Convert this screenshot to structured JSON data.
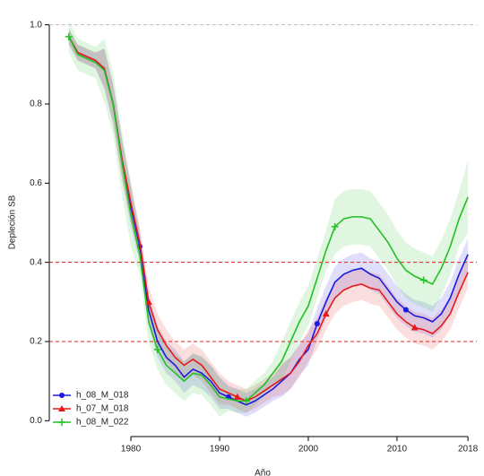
{
  "chart_data": {
    "type": "line",
    "x_label": "Año",
    "y_label": "Depleción SB",
    "x": [
      1973,
      1974,
      1975,
      1976,
      1977,
      1978,
      1979,
      1980,
      1981,
      1982,
      1983,
      1984,
      1985,
      1986,
      1987,
      1988,
      1989,
      1990,
      1991,
      1992,
      1993,
      1994,
      1995,
      1996,
      1997,
      1998,
      1999,
      2000,
      2001,
      2002,
      2003,
      2004,
      2005,
      2006,
      2007,
      2008,
      2009,
      2010,
      2011,
      2012,
      2013,
      2014,
      2015,
      2016,
      2017,
      2018
    ],
    "xlim": [
      1970.8,
      2019
    ],
    "xticks": [
      1980,
      1990,
      2000,
      2010,
      2018
    ],
    "ylim": [
      -0.04,
      1.04
    ],
    "yticks": [
      {
        "value": 0,
        "label": "0.0"
      },
      0.2,
      0.4,
      0.6,
      0.8,
      {
        "value": 1,
        "label": "1.0"
      }
    ],
    "hlines": [
      {
        "value": 0.2,
        "color": "#e02020"
      },
      {
        "value": 0.4,
        "color": "#e02020"
      },
      {
        "value": 1,
        "color": "#bbbbbb"
      }
    ],
    "legend": "bottom left",
    "series": [
      {
        "name": "h_08_M_018",
        "color": "#1a1ae0",
        "marker": "circle",
        "values": [
          0.97,
          0.93,
          0.92,
          0.91,
          0.89,
          0.8,
          0.66,
          0.54,
          0.44,
          0.28,
          0.2,
          0.16,
          0.14,
          0.11,
          0.13,
          0.12,
          0.1,
          0.07,
          0.06,
          0.05,
          0.04,
          0.05,
          0.065,
          0.08,
          0.1,
          0.12,
          0.155,
          0.18,
          0.245,
          0.3,
          0.35,
          0.37,
          0.38,
          0.385,
          0.37,
          0.36,
          0.33,
          0.3,
          0.28,
          0.265,
          0.26,
          0.25,
          0.27,
          0.31,
          0.37,
          0.42
        ],
        "lower": [
          0.95,
          0.91,
          0.9,
          0.89,
          0.84,
          0.75,
          0.61,
          0.49,
          0.4,
          0.24,
          0.16,
          0.12,
          0.1,
          0.07,
          0.09,
          0.08,
          0.06,
          0.03,
          0.03,
          0.02,
          0.01,
          0.02,
          0.035,
          0.05,
          0.06,
          0.08,
          0.115,
          0.14,
          0.205,
          0.26,
          0.31,
          0.33,
          0.34,
          0.345,
          0.33,
          0.32,
          0.29,
          0.26,
          0.24,
          0.225,
          0.22,
          0.21,
          0.23,
          0.27,
          0.33,
          0.38
        ],
        "upper": [
          0.99,
          0.95,
          0.94,
          0.93,
          0.94,
          0.85,
          0.71,
          0.59,
          0.48,
          0.32,
          0.24,
          0.2,
          0.18,
          0.15,
          0.17,
          0.16,
          0.14,
          0.11,
          0.09,
          0.08,
          0.07,
          0.08,
          0.095,
          0.11,
          0.14,
          0.16,
          0.195,
          0.22,
          0.285,
          0.34,
          0.39,
          0.41,
          0.42,
          0.425,
          0.41,
          0.4,
          0.37,
          0.34,
          0.32,
          0.305,
          0.3,
          0.29,
          0.31,
          0.35,
          0.41,
          0.46
        ]
      },
      {
        "name": "h_07_M_018",
        "color": "#e61a1a",
        "marker": "triangle",
        "values": [
          0.97,
          0.93,
          0.92,
          0.91,
          0.89,
          0.8,
          0.66,
          0.55,
          0.45,
          0.3,
          0.23,
          0.19,
          0.16,
          0.14,
          0.155,
          0.14,
          0.11,
          0.08,
          0.07,
          0.06,
          0.05,
          0.06,
          0.075,
          0.09,
          0.105,
          0.12,
          0.15,
          0.19,
          0.22,
          0.27,
          0.31,
          0.33,
          0.34,
          0.345,
          0.335,
          0.33,
          0.3,
          0.27,
          0.25,
          0.235,
          0.23,
          0.22,
          0.24,
          0.27,
          0.325,
          0.375
        ],
        "lower": [
          0.95,
          0.91,
          0.9,
          0.89,
          0.84,
          0.75,
          0.61,
          0.5,
          0.41,
          0.26,
          0.19,
          0.15,
          0.12,
          0.1,
          0.115,
          0.1,
          0.07,
          0.04,
          0.04,
          0.03,
          0.02,
          0.03,
          0.045,
          0.06,
          0.065,
          0.08,
          0.11,
          0.15,
          0.18,
          0.23,
          0.27,
          0.29,
          0.3,
          0.305,
          0.295,
          0.29,
          0.26,
          0.23,
          0.21,
          0.195,
          0.19,
          0.18,
          0.2,
          0.23,
          0.285,
          0.335
        ],
        "upper": [
          0.99,
          0.95,
          0.94,
          0.93,
          0.94,
          0.85,
          0.71,
          0.6,
          0.49,
          0.34,
          0.27,
          0.23,
          0.2,
          0.18,
          0.195,
          0.18,
          0.15,
          0.12,
          0.1,
          0.09,
          0.08,
          0.09,
          0.105,
          0.12,
          0.145,
          0.16,
          0.19,
          0.23,
          0.26,
          0.31,
          0.35,
          0.37,
          0.38,
          0.385,
          0.375,
          0.37,
          0.34,
          0.31,
          0.29,
          0.275,
          0.27,
          0.26,
          0.28,
          0.31,
          0.365,
          0.415
        ]
      },
      {
        "name": "h_08_M_022",
        "color": "#22c022",
        "marker": "plus",
        "values": [
          0.97,
          0.925,
          0.915,
          0.905,
          0.885,
          0.8,
          0.65,
          0.52,
          0.42,
          0.25,
          0.18,
          0.14,
          0.12,
          0.1,
          0.12,
          0.115,
          0.09,
          0.06,
          0.055,
          0.05,
          0.05,
          0.07,
          0.09,
          0.12,
          0.15,
          0.2,
          0.25,
          0.29,
          0.36,
          0.43,
          0.49,
          0.51,
          0.515,
          0.515,
          0.51,
          0.48,
          0.45,
          0.41,
          0.38,
          0.365,
          0.355,
          0.345,
          0.385,
          0.44,
          0.51,
          0.565
        ],
        "lower": [
          0.93,
          0.885,
          0.875,
          0.865,
          0.805,
          0.72,
          0.57,
          0.44,
          0.37,
          0.2,
          0.13,
          0.09,
          0.07,
          0.05,
          0.07,
          0.065,
          0.04,
          0.01,
          0.025,
          0.02,
          0.02,
          0.04,
          0.06,
          0.09,
          0.1,
          0.15,
          0.2,
          0.24,
          0.31,
          0.38,
          0.42,
          0.44,
          0.445,
          0.445,
          0.44,
          0.41,
          0.38,
          0.34,
          0.31,
          0.295,
          0.285,
          0.275,
          0.315,
          0.37,
          0.44,
          0.475
        ],
        "upper": [
          1.01,
          0.965,
          0.955,
          0.945,
          0.965,
          0.88,
          0.73,
          0.6,
          0.47,
          0.3,
          0.23,
          0.19,
          0.17,
          0.15,
          0.17,
          0.165,
          0.14,
          0.11,
          0.085,
          0.08,
          0.08,
          0.1,
          0.12,
          0.15,
          0.2,
          0.25,
          0.3,
          0.34,
          0.41,
          0.48,
          0.56,
          0.58,
          0.585,
          0.585,
          0.58,
          0.55,
          0.52,
          0.48,
          0.45,
          0.435,
          0.425,
          0.415,
          0.455,
          0.51,
          0.58,
          0.655
        ]
      }
    ]
  }
}
